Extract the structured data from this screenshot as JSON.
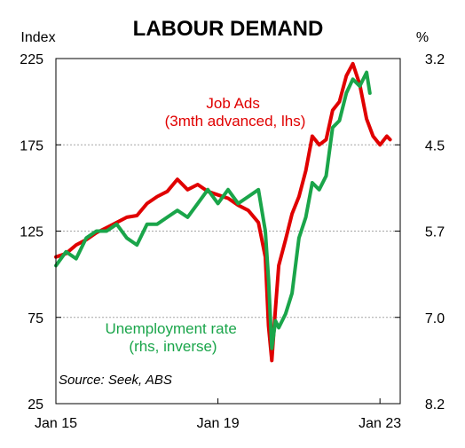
{
  "chart_data": {
    "type": "line",
    "title": "LABOUR DEMAND",
    "left_axis": {
      "unit": "Index",
      "ylim": [
        25,
        225
      ],
      "ticks": [
        "225",
        "175",
        "125",
        "75",
        "25"
      ]
    },
    "right_axis": {
      "unit": "%",
      "ylim": [
        3.2,
        8.2
      ],
      "inverted": true,
      "ticks": [
        "3.2",
        "4.5",
        "5.7",
        "7.0",
        "8.2"
      ]
    },
    "x_ticks": [
      "Jan 15",
      "Jan 19",
      "Jan 23"
    ],
    "x_range": [
      2015.0,
      2023.5
    ],
    "grid": "horizontal dashed",
    "source": "Source: Seek, ABS",
    "series": [
      {
        "name": "Job Ads",
        "label_lines": [
          "Job Ads",
          "(3mth advanced, lhs)"
        ],
        "axis": "left",
        "color": "#e00000",
        "x": [
          2015.0,
          2015.25,
          2015.5,
          2015.75,
          2016.0,
          2016.25,
          2016.5,
          2016.75,
          2017.0,
          2017.25,
          2017.5,
          2017.75,
          2018.0,
          2018.25,
          2018.5,
          2018.75,
          2019.0,
          2019.25,
          2019.5,
          2019.75,
          2020.0,
          2020.17,
          2020.25,
          2020.33,
          2020.42,
          2020.5,
          2020.67,
          2020.83,
          2021.0,
          2021.17,
          2021.33,
          2021.5,
          2021.67,
          2021.83,
          2022.0,
          2022.17,
          2022.33,
          2022.5,
          2022.67,
          2022.83,
          2023.0,
          2023.17,
          2023.25
        ],
        "values": [
          110,
          112,
          117,
          120,
          124,
          127,
          130,
          133,
          134,
          141,
          145,
          148,
          155,
          149,
          152,
          148,
          146,
          144,
          140,
          137,
          130,
          110,
          70,
          50,
          80,
          105,
          120,
          135,
          145,
          160,
          180,
          175,
          178,
          195,
          200,
          215,
          222,
          210,
          190,
          180,
          175,
          180,
          178
        ]
      },
      {
        "name": "Unemployment rate",
        "label_lines": [
          "Unemployment rate",
          "(rhs, inverse)"
        ],
        "axis": "right",
        "color": "#1aa54a",
        "x": [
          2015.0,
          2015.25,
          2015.5,
          2015.75,
          2016.0,
          2016.25,
          2016.5,
          2016.75,
          2017.0,
          2017.25,
          2017.5,
          2017.75,
          2018.0,
          2018.25,
          2018.5,
          2018.75,
          2019.0,
          2019.25,
          2019.5,
          2019.75,
          2020.0,
          2020.17,
          2020.25,
          2020.33,
          2020.42,
          2020.5,
          2020.67,
          2020.83,
          2021.0,
          2021.17,
          2021.33,
          2021.5,
          2021.67,
          2021.83,
          2022.0,
          2022.17,
          2022.33,
          2022.5,
          2022.67,
          2022.75
        ],
        "values": [
          6.2,
          6.0,
          6.1,
          5.8,
          5.7,
          5.7,
          5.6,
          5.8,
          5.9,
          5.6,
          5.6,
          5.5,
          5.4,
          5.5,
          5.3,
          5.1,
          5.3,
          5.1,
          5.3,
          5.2,
          5.1,
          5.7,
          6.4,
          7.4,
          7.0,
          7.1,
          6.9,
          6.6,
          5.8,
          5.5,
          5.0,
          5.1,
          4.9,
          4.2,
          4.1,
          3.7,
          3.5,
          3.6,
          3.4,
          3.7
        ]
      }
    ]
  }
}
